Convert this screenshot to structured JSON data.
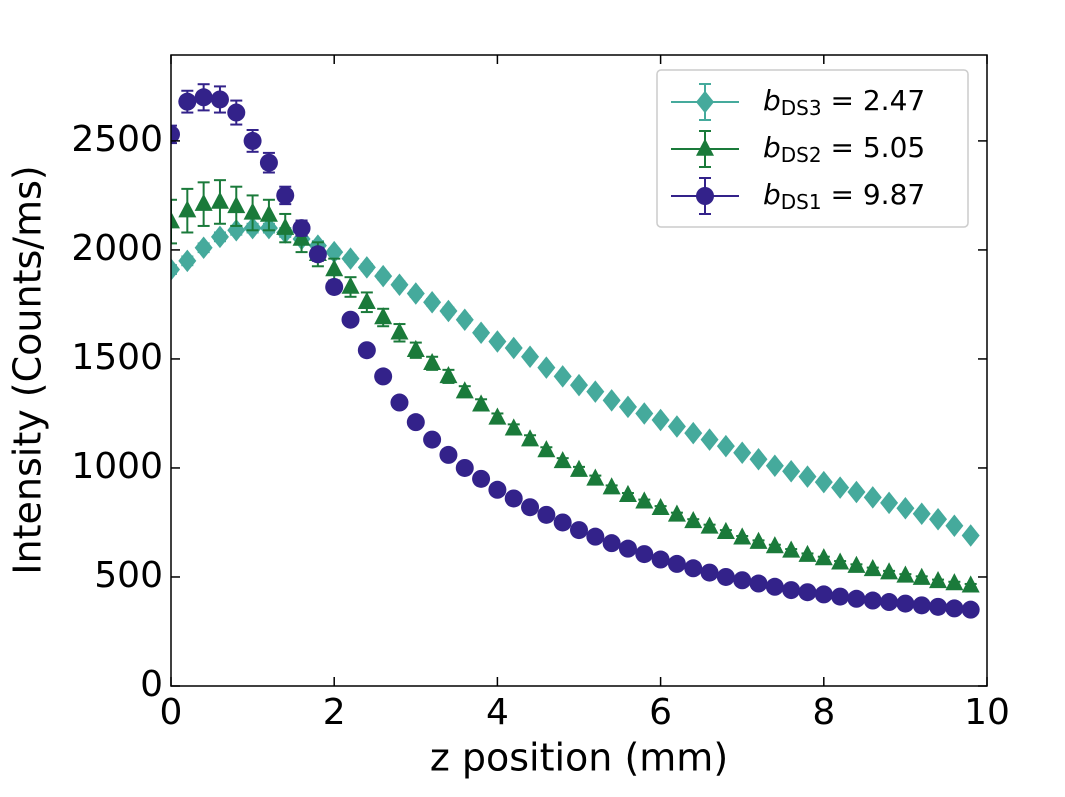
{
  "chart_data": {
    "type": "scatter",
    "xlabel": "z position (mm)",
    "ylabel": "Intensity (Counts/ms)",
    "xlim": [
      0,
      10
    ],
    "ylim": [
      0,
      2894
    ],
    "xticks": [
      0,
      2,
      4,
      6,
      8,
      10
    ],
    "yticks": [
      0,
      500,
      1000,
      1500,
      2000,
      2500
    ],
    "legend": "upper right",
    "x": [
      0,
      0.2,
      0.4,
      0.6,
      0.8,
      1.0,
      1.2,
      1.4,
      1.6,
      1.8,
      2.0,
      2.2,
      2.4,
      2.6,
      2.8,
      3.0,
      3.2,
      3.4,
      3.6,
      3.8,
      4.0,
      4.2,
      4.4,
      4.6,
      4.8,
      5.0,
      5.2,
      5.4,
      5.6,
      5.8,
      6.0,
      6.2,
      6.4,
      6.6,
      6.8,
      7.0,
      7.2,
      7.4,
      7.6,
      7.8,
      8.0,
      8.2,
      8.4,
      8.6,
      8.8,
      9.0,
      9.2,
      9.4,
      9.6,
      9.8
    ],
    "series": [
      {
        "name_parts": [
          "b",
          "DS3",
          " = 2.47"
        ],
        "color": "#45aa9c",
        "marker": "diamond",
        "values": [
          1910,
          1950,
          2010,
          2060,
          2090,
          2100,
          2100,
          2080,
          2050,
          2020,
          1990,
          1960,
          1920,
          1880,
          1840,
          1800,
          1760,
          1720,
          1680,
          1620,
          1580,
          1550,
          1510,
          1460,
          1420,
          1380,
          1350,
          1310,
          1280,
          1250,
          1220,
          1190,
          1160,
          1130,
          1100,
          1070,
          1040,
          1010,
          985,
          960,
          935,
          910,
          890,
          865,
          840,
          815,
          790,
          765,
          735,
          690
        ],
        "errors": [
          20,
          20,
          20,
          20,
          20,
          20,
          20,
          20,
          20,
          20,
          15,
          15,
          15,
          15,
          15,
          15,
          15,
          15,
          15,
          15,
          10,
          10,
          10,
          10,
          10,
          10,
          10,
          10,
          10,
          10,
          10,
          10,
          10,
          10,
          10,
          10,
          10,
          10,
          10,
          10,
          10,
          10,
          10,
          10,
          10,
          10,
          10,
          10,
          10,
          10
        ]
      },
      {
        "name_parts": [
          "b",
          "DS2",
          " = 5.05"
        ],
        "color": "#1a7a3a",
        "marker": "triangle",
        "values": [
          2130,
          2180,
          2210,
          2220,
          2200,
          2170,
          2160,
          2100,
          2050,
          1980,
          1910,
          1830,
          1760,
          1690,
          1620,
          1540,
          1480,
          1420,
          1350,
          1290,
          1230,
          1180,
          1130,
          1080,
          1030,
          990,
          950,
          910,
          875,
          845,
          815,
          785,
          755,
          730,
          705,
          680,
          660,
          640,
          620,
          600,
          585,
          565,
          550,
          535,
          520,
          505,
          495,
          480,
          470,
          460
        ],
        "errors": [
          100,
          100,
          100,
          100,
          90,
          80,
          70,
          65,
          60,
          55,
          50,
          45,
          45,
          40,
          40,
          35,
          30,
          30,
          25,
          25,
          20,
          20,
          20,
          15,
          15,
          15,
          15,
          10,
          10,
          10,
          10,
          10,
          10,
          10,
          10,
          8,
          8,
          8,
          8,
          8,
          8,
          8,
          8,
          8,
          8,
          8,
          8,
          8,
          8,
          8
        ]
      },
      {
        "name_parts": [
          "b",
          "DS1",
          " = 9.87"
        ],
        "color": "#33228a",
        "marker": "circle",
        "values": [
          2530,
          2680,
          2700,
          2690,
          2630,
          2500,
          2400,
          2250,
          2100,
          1980,
          1830,
          1680,
          1540,
          1420,
          1300,
          1210,
          1130,
          1060,
          1000,
          950,
          900,
          860,
          820,
          785,
          750,
          715,
          685,
          655,
          630,
          605,
          580,
          560,
          540,
          520,
          500,
          485,
          470,
          455,
          440,
          430,
          420,
          410,
          400,
          392,
          385,
          378,
          370,
          363,
          356,
          350
        ],
        "errors": [
          40,
          50,
          60,
          60,
          55,
          50,
          45,
          40,
          35,
          30,
          25,
          20,
          20,
          15,
          15,
          12,
          10,
          10,
          10,
          10,
          8,
          8,
          8,
          8,
          8,
          8,
          8,
          8,
          8,
          8,
          6,
          6,
          6,
          6,
          6,
          6,
          6,
          6,
          6,
          6,
          6,
          6,
          6,
          6,
          6,
          6,
          6,
          6,
          6,
          6
        ]
      }
    ]
  }
}
